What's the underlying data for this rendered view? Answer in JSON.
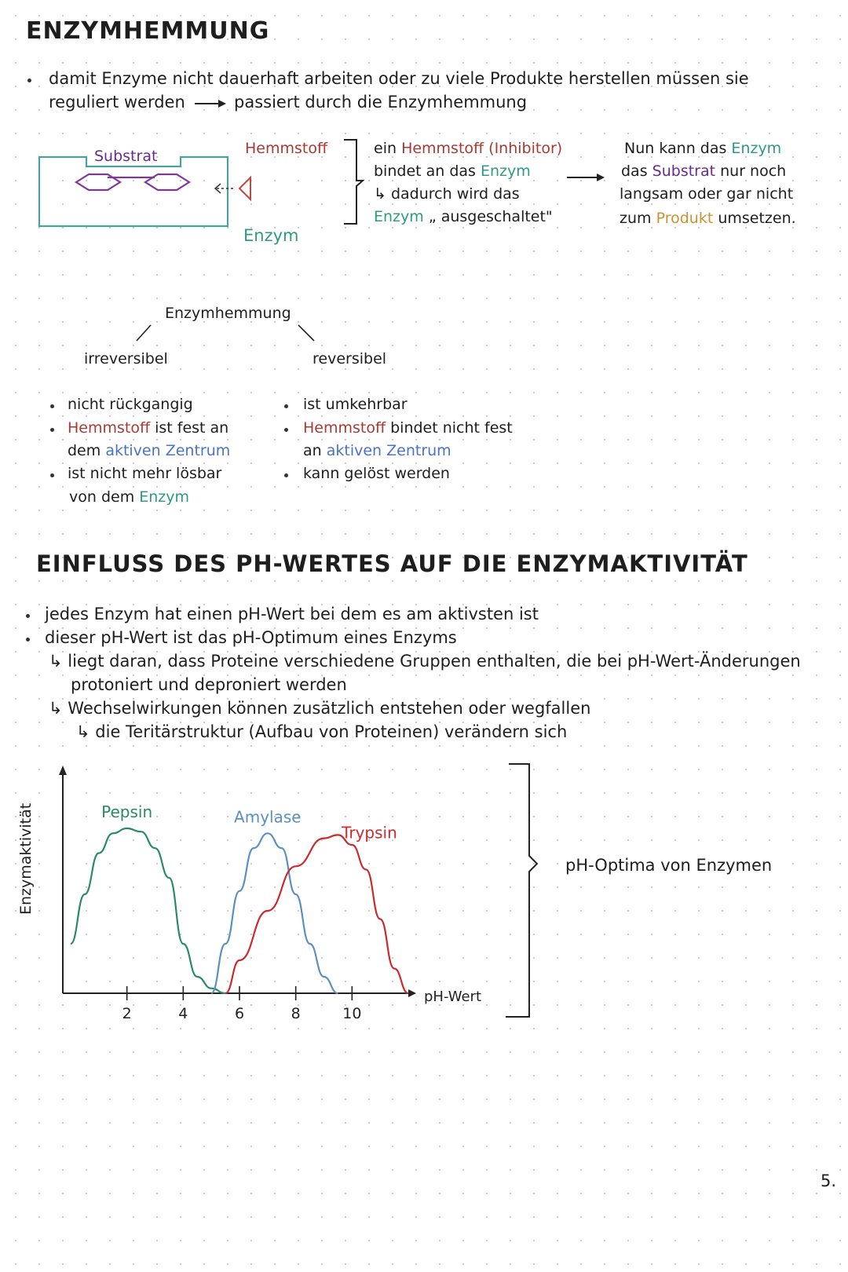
{
  "title1": "ENZYMHEMMUNG",
  "intro": {
    "line1": "damit Enzyme nicht dauerhaft arbeiten oder zu viele Produkte herstellen müssen sie",
    "line2a": "reguliert werden",
    "line2b": "passiert durch die Enzymhemmung"
  },
  "diagram": {
    "substrat": "Substrat",
    "hemmstoff": "Hemmstoff",
    "enzym": "Enzym"
  },
  "explain": {
    "l1a": "ein ",
    "l1b": "Hemmstoff (Inhibitor)",
    "l2a": "bindet an das ",
    "l2b": "Enzym",
    "l3": "dadurch wird das",
    "l4a": "Enzym",
    "l4b": " „ ausgeschaltet\""
  },
  "result": {
    "l1a": "Nun kann das ",
    "l1b": "Enzym",
    "l2a": "das ",
    "l2b": "Substrat",
    "l2c": " nur noch",
    "l3": "langsam oder gar nicht",
    "l4a": "zum ",
    "l4b": "Produkt",
    "l4c": " umsetzen."
  },
  "tree": {
    "root": "Enzymhemmung",
    "left": "irreversibel",
    "right": "reversibel"
  },
  "irrev": {
    "b1": "nicht rückgangig",
    "b2a": "Hemmstoff",
    "b2b": " ist fest an",
    "b2c": "dem ",
    "b2d": "aktiven Zentrum",
    "b3a": "ist nicht mehr lösbar",
    "b3b": "von dem ",
    "b3c": "Enzym"
  },
  "rev": {
    "b1": "ist umkehrbar",
    "b2a": "Hemmstoff",
    "b2b": " bindet nicht fest",
    "b2c": "an ",
    "b2d": "aktiven Zentrum",
    "b3": "kann gelöst werden"
  },
  "title2": "EINFLUSS DES PH-WERTES AUF DIE ENZYMAKTIVITÄT",
  "ph": {
    "b1": "jedes Enzym hat einen pH-Wert bei dem es am aktivsten ist",
    "b2": "dieser pH-Wert ist das pH-Optimum eines Enzyms",
    "s1a": "liegt daran, dass Proteine verschiedene Gruppen enthalten, die bei pH-Wert-Änderungen",
    "s1b": "protoniert und deproniert werden",
    "s2": "Wechselwirkungen können zusätzlich entstehen oder wegfallen",
    "s3": "die Teritärstruktur (Aufbau von Proteinen) verändern sich"
  },
  "chart_data": {
    "type": "line",
    "xlabel": "pH-Wert",
    "ylabel": "Enzymaktivität",
    "x_ticks": [
      "2",
      "4",
      "6",
      "8",
      "10"
    ],
    "xlim": [
      0,
      12
    ],
    "series": [
      {
        "name": "Pepsin",
        "color": "#2a8a66",
        "x": [
          0,
          0.5,
          1,
          1.5,
          2,
          2.5,
          3,
          3.5,
          4,
          4.5,
          5,
          5.5
        ],
        "y": [
          0.3,
          0.6,
          0.85,
          0.97,
          1.0,
          0.98,
          0.88,
          0.7,
          0.3,
          0.1,
          0.03,
          0.0
        ]
      },
      {
        "name": "Amylase",
        "color": "#5a8fc2",
        "x": [
          5,
          5.5,
          6,
          6.5,
          7,
          7.5,
          8,
          8.5,
          9,
          9.5
        ],
        "y": [
          0.0,
          0.3,
          0.62,
          0.88,
          0.97,
          0.88,
          0.6,
          0.3,
          0.1,
          0.0
        ]
      },
      {
        "name": "Trypsin",
        "color": "#cc2a2a",
        "x": [
          5.5,
          6,
          7,
          8,
          9,
          9.5,
          10,
          10.5,
          11,
          11.5,
          12
        ],
        "y": [
          0.0,
          0.2,
          0.5,
          0.77,
          0.94,
          0.96,
          0.9,
          0.75,
          0.45,
          0.15,
          0.0
        ]
      }
    ]
  },
  "brace_label": "pH-Optima von Enzymen",
  "page_number": "5."
}
